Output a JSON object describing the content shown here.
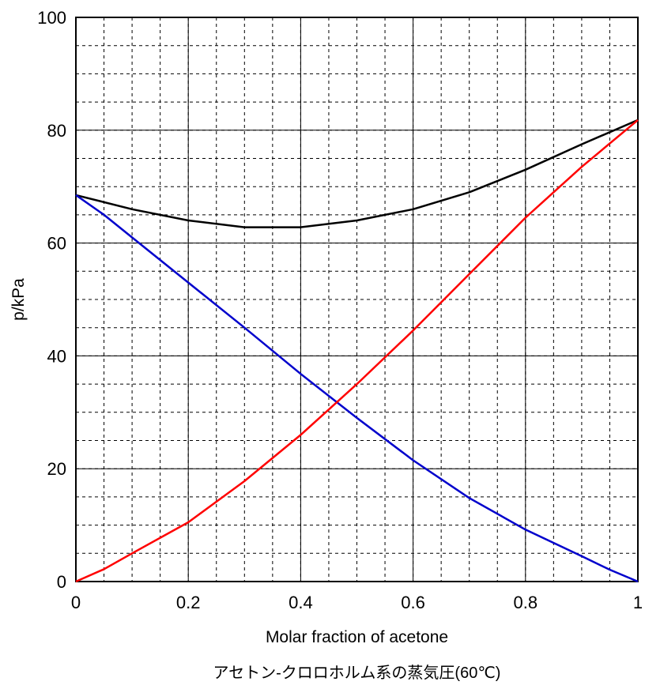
{
  "chart_data": {
    "type": "line",
    "xlabel": "Molar fraction of acetone",
    "ylabel": "p/kPa",
    "caption": "アセトン-クロロホルム系の蒸気圧(60℃)",
    "xlim": [
      0,
      1
    ],
    "ylim": [
      0,
      100
    ],
    "x_major_ticks": [
      0,
      0.2,
      0.4,
      0.6,
      0.8,
      1
    ],
    "x_tick_labels": [
      "0",
      "0.2",
      "0.4",
      "0.6",
      "0.8",
      "1"
    ],
    "y_major_ticks": [
      0,
      20,
      40,
      60,
      80,
      100
    ],
    "y_tick_labels": [
      "0",
      "20",
      "40",
      "60",
      "80",
      "100"
    ],
    "grid": {
      "major": true,
      "minor": true,
      "major_style": "solid",
      "minor_style": "dashed",
      "x_minor_step": 0.05,
      "y_minor_step": 5
    },
    "legend": "none",
    "series": [
      {
        "color": "#000000",
        "x": [
          0,
          0.1,
          0.2,
          0.3,
          0.4,
          0.5,
          0.6,
          0.7,
          0.8,
          0.9,
          1.0
        ],
        "values": [
          68.5,
          66.0,
          64.0,
          62.8,
          62.8,
          64.0,
          66.0,
          69.0,
          73.0,
          77.5,
          81.8
        ]
      },
      {
        "color": "#0000cc",
        "x": [
          0,
          0.05,
          0.1,
          0.2,
          0.3,
          0.4,
          0.5,
          0.6,
          0.7,
          0.8,
          0.9,
          0.95,
          1.0
        ],
        "values": [
          68.5,
          65.0,
          61.0,
          53.0,
          45.0,
          36.8,
          29.0,
          21.5,
          14.8,
          9.2,
          4.5,
          2.1,
          0
        ]
      },
      {
        "color": "#ff0000",
        "x": [
          0,
          0.05,
          0.1,
          0.2,
          0.3,
          0.4,
          0.5,
          0.6,
          0.7,
          0.8,
          0.9,
          1.0
        ],
        "values": [
          0,
          2.2,
          5.0,
          10.5,
          17.8,
          26.0,
          35.0,
          44.5,
          54.5,
          64.5,
          73.5,
          81.8
        ]
      }
    ]
  }
}
